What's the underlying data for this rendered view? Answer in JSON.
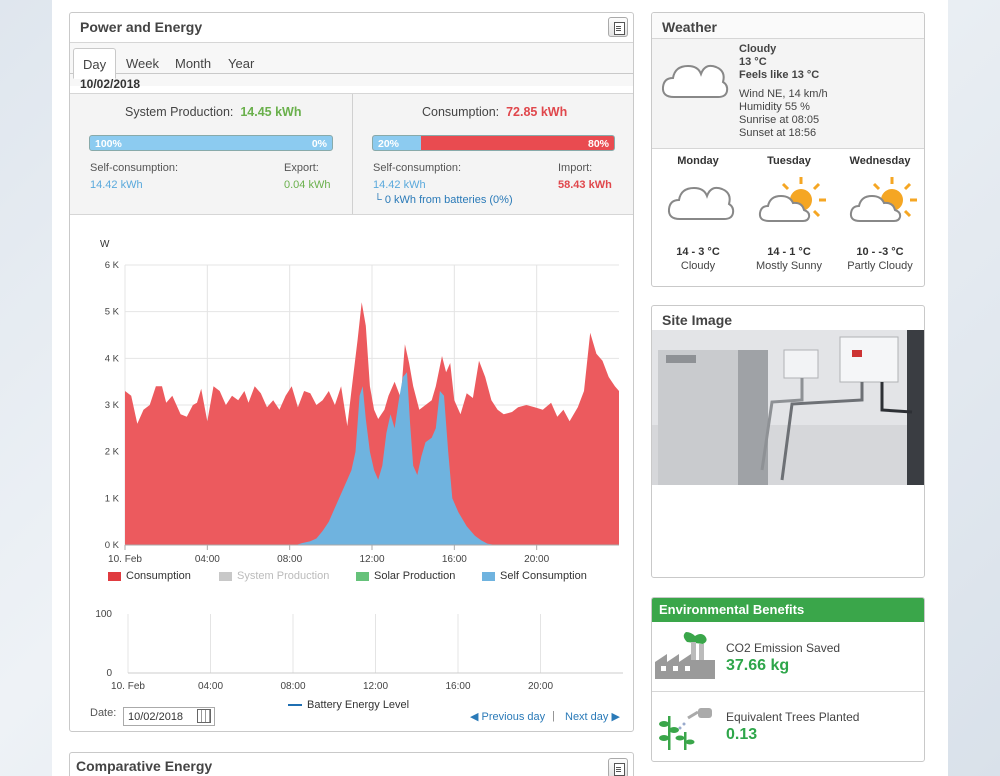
{
  "power_energy": {
    "title": "Power and Energy",
    "tabs": [
      "Day",
      "Week",
      "Month",
      "Year"
    ],
    "active_tab": "Day",
    "date": "10/02/2018",
    "production": {
      "label": "System Production:",
      "value": "14.45 kWh",
      "bar_left_pct": "100%",
      "bar_right_pct": "0%",
      "self_label": "Self-consumption:",
      "self_value": "14.42 kWh",
      "export_label": "Export:",
      "export_value": "0.04 kWh"
    },
    "consumption": {
      "label": "Consumption:",
      "value": "72.85 kWh",
      "bar_left_pct": "20%",
      "bar_right_pct": "80%",
      "self_label": "Self-consumption:",
      "self_value": "14.42 kWh",
      "import_label": "Import:",
      "import_value": "58.43 kWh",
      "batteries": "└ 0 kWh from batteries (0%)"
    },
    "date_label": "Date:",
    "date_value": "10/02/2018",
    "prev_day": "◀ Previous day",
    "separator": "|",
    "next_day": "Next day ▶"
  },
  "colors": {
    "consumption": "#ec5a5e",
    "system_production": "#c8c8c8",
    "solar_production": "#66c27a",
    "self_consumption": "#6fb3df",
    "env_green": "#3aa64a"
  },
  "chart_data": [
    {
      "type": "area",
      "ylabel": "W",
      "y_tick_labels": [
        "0 K",
        "1 K",
        "2 K",
        "3 K",
        "4 K",
        "5 K",
        "6 K"
      ],
      "ylim": [
        0,
        6000
      ],
      "x_tick_labels": [
        "10. Feb",
        "04:00",
        "08:00",
        "12:00",
        "16:00",
        "20:00"
      ],
      "xlim": [
        0,
        24
      ],
      "grid": true,
      "legend_position": "bottom",
      "series": [
        {
          "name": "Consumption",
          "color": "#ec5a5e",
          "points": [
            [
              0,
              3300
            ],
            [
              0.3,
              3200
            ],
            [
              0.6,
              2600
            ],
            [
              0.9,
              2900
            ],
            [
              1.2,
              3000
            ],
            [
              1.5,
              3400
            ],
            [
              1.8,
              3400
            ],
            [
              2.0,
              3050
            ],
            [
              2.3,
              3200
            ],
            [
              2.7,
              2800
            ],
            [
              3.0,
              2750
            ],
            [
              3.3,
              3000
            ],
            [
              3.5,
              3050
            ],
            [
              3.7,
              3350
            ],
            [
              4.0,
              2650
            ],
            [
              4.3,
              3400
            ],
            [
              4.6,
              3300
            ],
            [
              4.9,
              3000
            ],
            [
              5.2,
              3200
            ],
            [
              5.5,
              3100
            ],
            [
              5.8,
              3300
            ],
            [
              6.0,
              3050
            ],
            [
              6.3,
              3400
            ],
            [
              6.6,
              3250
            ],
            [
              6.9,
              2950
            ],
            [
              7.2,
              3100
            ],
            [
              7.5,
              2900
            ],
            [
              7.8,
              3200
            ],
            [
              8.1,
              3400
            ],
            [
              8.4,
              2950
            ],
            [
              8.7,
              3300
            ],
            [
              9.0,
              3250
            ],
            [
              9.3,
              3000
            ],
            [
              9.6,
              3100
            ],
            [
              9.9,
              3300
            ],
            [
              10.2,
              3000
            ],
            [
              10.5,
              3400
            ],
            [
              10.8,
              2550
            ],
            [
              11.0,
              3300
            ],
            [
              11.3,
              4400
            ],
            [
              11.5,
              5200
            ],
            [
              11.7,
              4700
            ],
            [
              11.9,
              3400
            ],
            [
              12.1,
              2900
            ],
            [
              12.3,
              2700
            ],
            [
              12.6,
              2900
            ],
            [
              12.8,
              3200
            ],
            [
              13.1,
              3500
            ],
            [
              13.4,
              3150
            ],
            [
              13.6,
              4300
            ],
            [
              13.8,
              3900
            ],
            [
              14.0,
              3400
            ],
            [
              14.3,
              2900
            ],
            [
              14.6,
              3000
            ],
            [
              14.9,
              3100
            ],
            [
              15.1,
              3400
            ],
            [
              15.4,
              4050
            ],
            [
              15.6,
              3700
            ],
            [
              15.8,
              3900
            ],
            [
              16.0,
              3100
            ],
            [
              16.3,
              2800
            ],
            [
              16.6,
              3250
            ],
            [
              16.9,
              3150
            ],
            [
              17.2,
              3950
            ],
            [
              17.5,
              3600
            ],
            [
              17.8,
              3100
            ],
            [
              18.1,
              2900
            ],
            [
              18.4,
              2800
            ],
            [
              18.8,
              2850
            ],
            [
              19.1,
              2950
            ],
            [
              19.5,
              3000
            ],
            [
              19.9,
              2950
            ],
            [
              20.3,
              2900
            ],
            [
              20.7,
              3050
            ],
            [
              21.0,
              2750
            ],
            [
              21.3,
              2900
            ],
            [
              21.6,
              2650
            ],
            [
              22.0,
              2950
            ],
            [
              22.3,
              3300
            ],
            [
              22.6,
              4550
            ],
            [
              22.9,
              4100
            ],
            [
              23.2,
              3950
            ],
            [
              23.5,
              3600
            ],
            [
              23.8,
              3400
            ],
            [
              24.0,
              3300
            ]
          ]
        },
        {
          "name": "System Production",
          "color": "#c8c8c8",
          "points": []
        },
        {
          "name": "Solar Production",
          "color": "#66c27a",
          "points": []
        },
        {
          "name": "Self Consumption",
          "color": "#6fb3df",
          "points": [
            [
              0,
              0
            ],
            [
              8.3,
              0
            ],
            [
              8.6,
              40
            ],
            [
              9.0,
              80
            ],
            [
              9.3,
              140
            ],
            [
              9.6,
              300
            ],
            [
              9.9,
              500
            ],
            [
              10.2,
              800
            ],
            [
              10.5,
              1100
            ],
            [
              10.8,
              1400
            ],
            [
              11.0,
              1600
            ],
            [
              11.2,
              2000
            ],
            [
              11.4,
              3200
            ],
            [
              11.55,
              3400
            ],
            [
              11.7,
              2700
            ],
            [
              11.9,
              2000
            ],
            [
              12.1,
              1600
            ],
            [
              12.3,
              1400
            ],
            [
              12.5,
              1700
            ],
            [
              12.7,
              2400
            ],
            [
              12.9,
              2800
            ],
            [
              13.1,
              2500
            ],
            [
              13.3,
              3100
            ],
            [
              13.5,
              3600
            ],
            [
              13.7,
              3700
            ],
            [
              13.85,
              2600
            ],
            [
              14.0,
              1700
            ],
            [
              14.2,
              1500
            ],
            [
              14.4,
              1900
            ],
            [
              14.6,
              2200
            ],
            [
              14.9,
              2300
            ],
            [
              15.1,
              2500
            ],
            [
              15.3,
              3300
            ],
            [
              15.5,
              3200
            ],
            [
              15.7,
              2000
            ],
            [
              15.9,
              1000
            ],
            [
              16.2,
              700
            ],
            [
              16.6,
              400
            ],
            [
              17.0,
              200
            ],
            [
              17.3,
              100
            ],
            [
              17.6,
              30
            ],
            [
              18.0,
              0
            ],
            [
              24.0,
              0
            ]
          ]
        }
      ]
    },
    {
      "type": "line",
      "y_tick_labels": [
        "0",
        "100"
      ],
      "ylim": [
        0,
        100
      ],
      "x_tick_labels": [
        "10. Feb",
        "04:00",
        "08:00",
        "12:00",
        "16:00",
        "20:00"
      ],
      "xlim": [
        0,
        24
      ],
      "grid": true,
      "legend_position": "bottom",
      "series": [
        {
          "name": "Battery Energy Level",
          "color": "#1f6fb2",
          "points": []
        }
      ]
    }
  ],
  "weather": {
    "title": "Weather",
    "current": {
      "condition": "Cloudy",
      "temp": "13 °C",
      "feels_like": "Feels like 13 °C",
      "wind": "Wind NE, 14 km/h",
      "humidity": "Humidity 55 %",
      "sunrise": "Sunrise at 08:05",
      "sunset": "Sunset at 18:56",
      "icon": "cloud-icon"
    },
    "forecast": [
      {
        "day": "Monday",
        "temp": "14 - 3 °C",
        "desc": "Cloudy",
        "icon": "cloud-icon"
      },
      {
        "day": "Tuesday",
        "temp": "14 - 1 °C",
        "desc": "Mostly Sunny",
        "icon": "sun-cloud-icon"
      },
      {
        "day": "Wednesday",
        "temp": "10 - -3 °C",
        "desc": "Partly Cloudy",
        "icon": "sun-cloud-icon"
      }
    ]
  },
  "site_image": {
    "title": "Site Image"
  },
  "environmental": {
    "title": "Environmental Benefits",
    "co2_label": "CO2 Emission Saved",
    "co2_value": "37.66 kg",
    "trees_label": "Equivalent Trees Planted",
    "trees_value": "0.13"
  },
  "comparative": {
    "title": "Comparative Energy"
  }
}
